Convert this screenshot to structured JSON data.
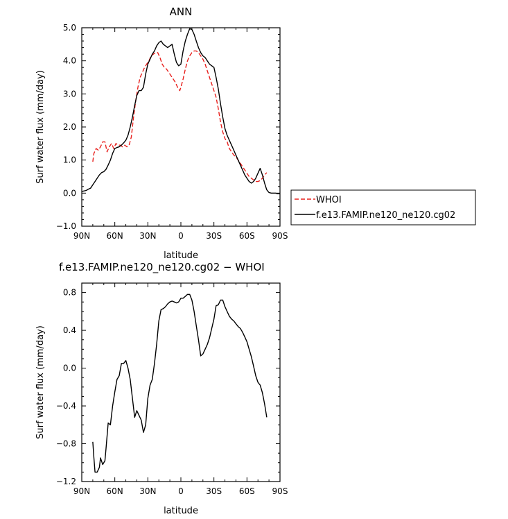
{
  "chart_data": [
    {
      "type": "line",
      "title": "ANN",
      "xlabel": "latitude",
      "ylabel": "Surf water flux (mm/day)",
      "xlim": [
        90,
        -90
      ],
      "ylim": [
        -1.0,
        5.0
      ],
      "x_ticks": [
        {
          "value": 90,
          "label": "90N"
        },
        {
          "value": 60,
          "label": "60N"
        },
        {
          "value": 30,
          "label": "30N"
        },
        {
          "value": 0,
          "label": "0"
        },
        {
          "value": -30,
          "label": "30S"
        },
        {
          "value": -60,
          "label": "60S"
        },
        {
          "value": -90,
          "label": "90S"
        }
      ],
      "y_ticks": [
        {
          "value": -1.0,
          "label": "−1.0"
        },
        {
          "value": 0.0,
          "label": "0.0"
        },
        {
          "value": 1.0,
          "label": "1.0"
        },
        {
          "value": 2.0,
          "label": "2.0"
        },
        {
          "value": 3.0,
          "label": "3.0"
        },
        {
          "value": 4.0,
          "label": "4.0"
        },
        {
          "value": 5.0,
          "label": "5.0"
        }
      ],
      "grid": false,
      "legend": "right",
      "series": [
        {
          "name": "WHOI",
          "color": "#e8201d",
          "dash": "dashed",
          "x": [
            80,
            79,
            77,
            75,
            73,
            71,
            69,
            67,
            65,
            63,
            61,
            59,
            57,
            55,
            53,
            51,
            49,
            47,
            45,
            43,
            41,
            39,
            37,
            35,
            33,
            31,
            29,
            27,
            25,
            23,
            21,
            19,
            17,
            15,
            13,
            11,
            9,
            7,
            5,
            3,
            1,
            0,
            -2,
            -4,
            -6,
            -8,
            -10,
            -12,
            -14,
            -16,
            -18,
            -20,
            -22,
            -24,
            -26,
            -28,
            -30,
            -32,
            -34,
            -36,
            -38,
            -40,
            -42,
            -44,
            -46,
            -48,
            -50,
            -52,
            -54,
            -56,
            -58,
            -60,
            -62,
            -64,
            -66,
            -68,
            -70,
            -72,
            -74,
            -76,
            -78
          ],
          "y": [
            0.95,
            1.2,
            1.35,
            1.3,
            1.4,
            1.55,
            1.55,
            1.25,
            1.4,
            1.5,
            1.35,
            1.5,
            1.45,
            1.45,
            1.4,
            1.45,
            1.4,
            1.45,
            1.7,
            2.3,
            2.8,
            3.2,
            3.5,
            3.65,
            3.8,
            3.9,
            4.0,
            4.15,
            4.2,
            4.25,
            4.25,
            4.1,
            3.9,
            3.8,
            3.75,
            3.65,
            3.55,
            3.45,
            3.35,
            3.2,
            3.1,
            3.2,
            3.45,
            3.75,
            4.0,
            4.15,
            4.25,
            4.3,
            4.3,
            4.25,
            4.15,
            4.05,
            3.9,
            3.7,
            3.5,
            3.3,
            3.1,
            2.9,
            2.55,
            2.15,
            1.85,
            1.65,
            1.55,
            1.35,
            1.25,
            1.15,
            1.1,
            1.0,
            0.9,
            0.8,
            0.7,
            0.6,
            0.5,
            0.45,
            0.4,
            0.35,
            0.35,
            0.38,
            0.45,
            0.55,
            0.62
          ]
        },
        {
          "name": "f.e13.FAMIP.ne120_ne120.cg02",
          "color": "#000000",
          "dash": "solid",
          "x": [
            90,
            86,
            84,
            82,
            80,
            78,
            76,
            74,
            72,
            70,
            68,
            66,
            64,
            62,
            60,
            58,
            56,
            54,
            52,
            50,
            48,
            46,
            44,
            42,
            40,
            38,
            36,
            34,
            32,
            30,
            28,
            26,
            24,
            22,
            20,
            18,
            16,
            14,
            12,
            10,
            8,
            6,
            4,
            2,
            0,
            -2,
            -4,
            -6,
            -8,
            -10,
            -12,
            -14,
            -16,
            -18,
            -20,
            -22,
            -24,
            -26,
            -28,
            -30,
            -32,
            -34,
            -36,
            -38,
            -40,
            -42,
            -44,
            -46,
            -48,
            -50,
            -52,
            -54,
            -56,
            -58,
            -60,
            -62,
            -64,
            -66,
            -68,
            -70,
            -72,
            -74,
            -76,
            -78,
            -80,
            -82,
            -84,
            -86,
            -88,
            -90
          ],
          "y": [
            0.05,
            0.08,
            0.12,
            0.15,
            0.25,
            0.35,
            0.45,
            0.55,
            0.62,
            0.65,
            0.72,
            0.85,
            1.0,
            1.2,
            1.35,
            1.38,
            1.4,
            1.45,
            1.52,
            1.6,
            1.75,
            2.0,
            2.3,
            2.65,
            2.95,
            3.1,
            3.1,
            3.2,
            3.6,
            3.9,
            4.05,
            4.2,
            4.3,
            4.45,
            4.55,
            4.6,
            4.5,
            4.45,
            4.4,
            4.45,
            4.5,
            4.2,
            3.95,
            3.85,
            3.9,
            4.3,
            4.6,
            4.8,
            4.97,
            4.95,
            4.8,
            4.6,
            4.4,
            4.25,
            4.15,
            4.1,
            4.0,
            3.9,
            3.85,
            3.8,
            3.5,
            3.15,
            2.7,
            2.3,
            1.95,
            1.75,
            1.6,
            1.45,
            1.3,
            1.15,
            1.0,
            0.85,
            0.7,
            0.55,
            0.45,
            0.35,
            0.3,
            0.35,
            0.45,
            0.6,
            0.75,
            0.55,
            0.3,
            0.1,
            0.02,
            0.0,
            0.0,
            0.0,
            -0.02,
            -0.02
          ]
        }
      ]
    },
    {
      "type": "line",
      "title": "f.e13.FAMIP.ne120_ne120.cg02 − WHOI",
      "xlabel": "latitude",
      "ylabel": "Surf water flux (mm/day)",
      "xlim": [
        90,
        -90
      ],
      "ylim": [
        -1.2,
        0.9
      ],
      "x_ticks": [
        {
          "value": 90,
          "label": "90N"
        },
        {
          "value": 60,
          "label": "60N"
        },
        {
          "value": 30,
          "label": "30N"
        },
        {
          "value": 0,
          "label": "0"
        },
        {
          "value": -30,
          "label": "30S"
        },
        {
          "value": -60,
          "label": "60S"
        },
        {
          "value": -90,
          "label": "90S"
        }
      ],
      "y_ticks": [
        {
          "value": -1.2,
          "label": "−1.2"
        },
        {
          "value": -0.8,
          "label": "−0.8"
        },
        {
          "value": -0.4,
          "label": "−0.4"
        },
        {
          "value": 0.0,
          "label": "0.0"
        },
        {
          "value": 0.4,
          "label": "0.4"
        },
        {
          "value": 0.8,
          "label": "0.8"
        }
      ],
      "grid": false,
      "series": [
        {
          "color": "#000000",
          "dash": "solid",
          "x": [
            80,
            79,
            78,
            76,
            74,
            73,
            71,
            69,
            68,
            66,
            64,
            62,
            60,
            58,
            56,
            54,
            52,
            50,
            48,
            46,
            44,
            42,
            40,
            38,
            36,
            34,
            32,
            30,
            28,
            26,
            24,
            22,
            20,
            18,
            16,
            14,
            12,
            10,
            8,
            6,
            4,
            2,
            0,
            -2,
            -4,
            -6,
            -8,
            -10,
            -12,
            -14,
            -16,
            -18,
            -20,
            -22,
            -24,
            -26,
            -28,
            -30,
            -32,
            -34,
            -36,
            -38,
            -40,
            -42,
            -44,
            -46,
            -48,
            -50,
            -52,
            -54,
            -56,
            -58,
            -60,
            -62,
            -64,
            -66,
            -68,
            -70,
            -72,
            -74,
            -76,
            -78
          ],
          "y": [
            -0.78,
            -0.95,
            -1.1,
            -1.1,
            -1.05,
            -0.95,
            -1.02,
            -0.98,
            -0.85,
            -0.58,
            -0.6,
            -0.4,
            -0.25,
            -0.12,
            -0.08,
            0.05,
            0.05,
            0.08,
            0.0,
            -0.12,
            -0.32,
            -0.52,
            -0.45,
            -0.5,
            -0.55,
            -0.68,
            -0.6,
            -0.32,
            -0.18,
            -0.12,
            0.05,
            0.25,
            0.5,
            0.62,
            0.63,
            0.65,
            0.68,
            0.7,
            0.71,
            0.7,
            0.69,
            0.7,
            0.74,
            0.74,
            0.76,
            0.78,
            0.78,
            0.72,
            0.6,
            0.45,
            0.3,
            0.13,
            0.15,
            0.2,
            0.25,
            0.32,
            0.42,
            0.52,
            0.66,
            0.67,
            0.72,
            0.72,
            0.65,
            0.6,
            0.55,
            0.52,
            0.5,
            0.47,
            0.44,
            0.42,
            0.38,
            0.33,
            0.28,
            0.2,
            0.12,
            0.02,
            -0.08,
            -0.15,
            -0.18,
            -0.26,
            -0.38,
            -0.52
          ]
        }
      ]
    }
  ]
}
